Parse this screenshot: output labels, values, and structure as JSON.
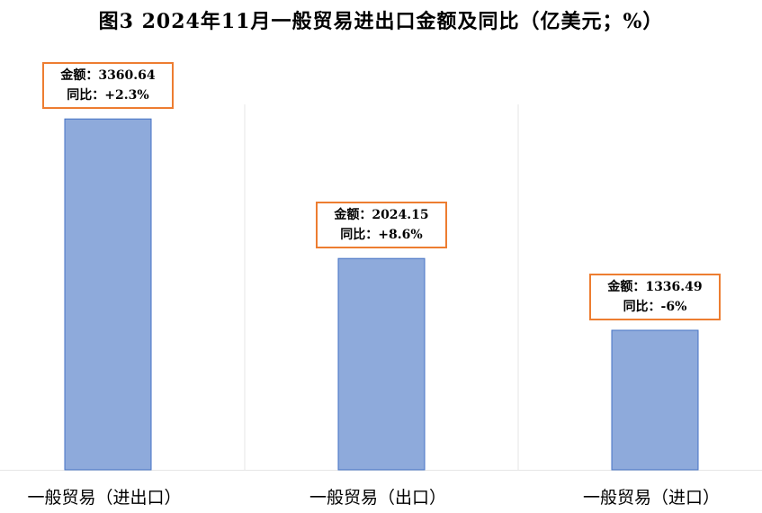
{
  "chart_data": {
    "type": "bar",
    "title": "图3   2024年11月一般贸易进出口金额及同比（亿美元；%）",
    "categories": [
      "一般贸易（进出口）",
      "一般贸易（出口）",
      "一般贸易（进口）"
    ],
    "values": [
      3360.64,
      2024.15,
      1336.49
    ],
    "yoy": [
      "+2.3%",
      "+8.6%",
      "-6%"
    ],
    "data_labels": [
      {
        "amount": "金额：3360.64",
        "yoy": "同比：+2.3%"
      },
      {
        "amount": "金额：2024.15",
        "yoy": "同比：+8.6%"
      },
      {
        "amount": "金额：1336.49",
        "yoy": "同比：-6%"
      }
    ],
    "xlabel": "",
    "ylabel": "",
    "ylim": [
      0,
      3500
    ],
    "grid": "vertical category separators",
    "bar_color": "#8EAADB",
    "bar_edge_color": "#4472C4",
    "label_border_color": "#ED7D31"
  }
}
